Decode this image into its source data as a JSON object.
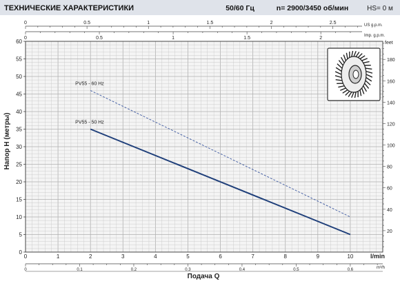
{
  "header": {
    "title": "ТЕХНИЧЕСКИЕ ХАРАКТЕРИСТИКИ",
    "freq": "50/60 Гц",
    "speed": "n= 2900/3450  об/мин",
    "hs": "HS= 0 м"
  },
  "colors": {
    "header_bg": "#dfe3ea",
    "plot_bg": "#f4f4f4",
    "grid": "#c4c4c4",
    "series_50": "#1f3f7a",
    "series_60": "#4a64a6"
  },
  "chart_data": {
    "type": "line",
    "xlabel": "Подача Q",
    "ylabel": "Напор H (метры)",
    "xlim": [
      0,
      11
    ],
    "ylim": [
      0,
      60
    ],
    "x_unit_label": "l/min",
    "x_ticks": [
      "0",
      "1",
      "2",
      "3",
      "4",
      "5",
      "6",
      "7",
      "8",
      "9",
      "10"
    ],
    "y_ticks": [
      "0",
      "5",
      "10",
      "15",
      "20",
      "25",
      "30",
      "35",
      "40",
      "45",
      "50",
      "55",
      "60"
    ],
    "m3h_unit": "m³/h",
    "m3h_ticks": [
      {
        "v": 0,
        "label": "0"
      },
      {
        "v": 0.1,
        "label": "0.1"
      },
      {
        "v": 0.2,
        "label": "0.2"
      },
      {
        "v": 0.3,
        "label": "0.3"
      },
      {
        "v": 0.4,
        "label": "0.4"
      },
      {
        "v": 0.5,
        "label": "0.5"
      },
      {
        "v": 0.6,
        "label": "0.6"
      }
    ],
    "us_unit": "US g.p.m.",
    "us_ticks": [
      {
        "v": 0,
        "label": "0"
      },
      {
        "v": 0.5,
        "label": "0.5"
      },
      {
        "v": 1,
        "label": "1"
      },
      {
        "v": 1.5,
        "label": "1.5"
      },
      {
        "v": 2,
        "label": "2"
      },
      {
        "v": 2.5,
        "label": "2.5"
      }
    ],
    "imp_unit": "Imp. g.p.m.",
    "imp_ticks": [
      {
        "v": 0,
        "label": "0"
      },
      {
        "v": 0.5,
        "label": "0.5"
      },
      {
        "v": 1,
        "label": "1"
      },
      {
        "v": 1.5,
        "label": "1.5"
      },
      {
        "v": 2,
        "label": "2"
      }
    ],
    "feet_unit": "feet",
    "feet_ticks": [
      "20",
      "40",
      "60",
      "80",
      "100",
      "120",
      "140",
      "160",
      "180"
    ],
    "series": [
      {
        "name": "PV55 - 60 Hz",
        "style": "dashed",
        "x": [
          2,
          10
        ],
        "y": [
          46,
          10
        ]
      },
      {
        "name": "PV55 - 50 Hz",
        "style": "solid",
        "x": [
          2,
          10
        ],
        "y": [
          35,
          5
        ]
      }
    ]
  }
}
